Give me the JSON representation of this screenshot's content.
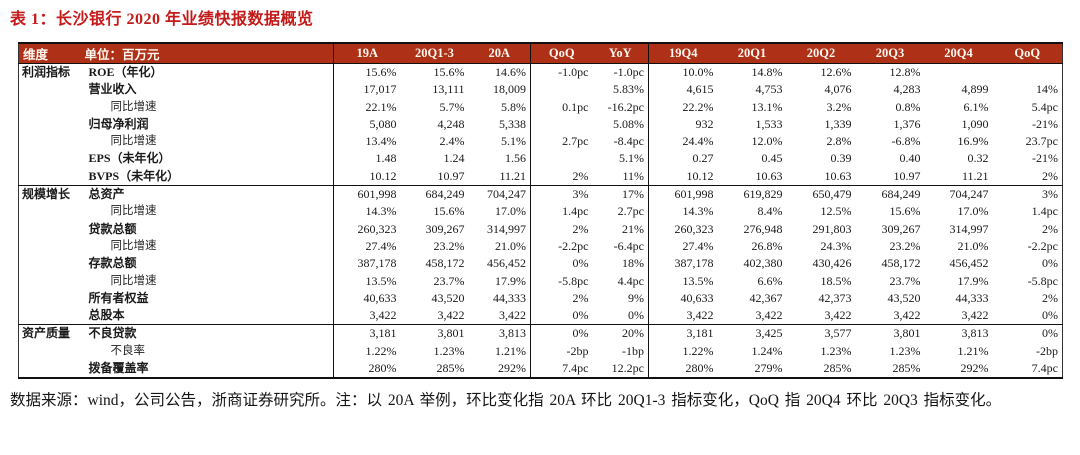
{
  "title": "表 1：长沙银行 2020 年业绩快报数据概览",
  "colors": {
    "header_bg": "#AE3117",
    "title_red": "#C41A1A",
    "border": "#111111"
  },
  "table": {
    "header": [
      "维度",
      "单位：百万元",
      "19A",
      "20Q1-3",
      "20A",
      "QoQ",
      "YoY",
      "19Q4",
      "20Q1",
      "20Q2",
      "20Q3",
      "20Q4",
      "QoQ"
    ],
    "sections": [
      {
        "name": "利润指标",
        "rows": [
          {
            "label": "ROE（年化）",
            "indent": false,
            "values": [
              "15.6%",
              "15.6%",
              "14.6%",
              "-1.0pc",
              "-1.0pc",
              "10.0%",
              "14.8%",
              "12.6%",
              "12.8%",
              "",
              ""
            ]
          },
          {
            "label": "营业收入",
            "indent": false,
            "values": [
              "17,017",
              "13,111",
              "18,009",
              "",
              "5.83%",
              "4,615",
              "4,753",
              "4,076",
              "4,283",
              "4,899",
              "14%"
            ]
          },
          {
            "label": "同比增速",
            "indent": true,
            "values": [
              "22.1%",
              "5.7%",
              "5.8%",
              "0.1pc",
              "-16.2pc",
              "22.2%",
              "13.1%",
              "3.2%",
              "0.8%",
              "6.1%",
              "5.4pc"
            ]
          },
          {
            "label": "归母净利润",
            "indent": false,
            "values": [
              "5,080",
              "4,248",
              "5,338",
              "",
              "5.08%",
              "932",
              "1,533",
              "1,339",
              "1,376",
              "1,090",
              "-21%"
            ]
          },
          {
            "label": "同比增速",
            "indent": true,
            "values": [
              "13.4%",
              "2.4%",
              "5.1%",
              "2.7pc",
              "-8.4pc",
              "24.4%",
              "12.0%",
              "2.8%",
              "-6.8%",
              "16.9%",
              "23.7pc"
            ]
          },
          {
            "label": "EPS（未年化）",
            "indent": false,
            "values": [
              "1.48",
              "1.24",
              "1.56",
              "",
              "5.1%",
              "0.27",
              "0.45",
              "0.39",
              "0.40",
              "0.32",
              "-21%"
            ]
          },
          {
            "label": "BVPS（未年化）",
            "indent": false,
            "values": [
              "10.12",
              "10.97",
              "11.21",
              "2%",
              "11%",
              "10.12",
              "10.63",
              "10.63",
              "10.97",
              "11.21",
              "2%"
            ]
          }
        ]
      },
      {
        "name": "规模增长",
        "rows": [
          {
            "label": "总资产",
            "indent": false,
            "values": [
              "601,998",
              "684,249",
              "704,247",
              "3%",
              "17%",
              "601,998",
              "619,829",
              "650,479",
              "684,249",
              "704,247",
              "3%"
            ]
          },
          {
            "label": "同比增速",
            "indent": true,
            "values": [
              "14.3%",
              "15.6%",
              "17.0%",
              "1.4pc",
              "2.7pc",
              "14.3%",
              "8.4%",
              "12.5%",
              "15.6%",
              "17.0%",
              "1.4pc"
            ]
          },
          {
            "label": "贷款总额",
            "indent": false,
            "values": [
              "260,323",
              "309,267",
              "314,997",
              "2%",
              "21%",
              "260,323",
              "276,948",
              "291,803",
              "309,267",
              "314,997",
              "2%"
            ]
          },
          {
            "label": "同比增速",
            "indent": true,
            "values": [
              "27.4%",
              "23.2%",
              "21.0%",
              "-2.2pc",
              "-6.4pc",
              "27.4%",
              "26.8%",
              "24.3%",
              "23.2%",
              "21.0%",
              "-2.2pc"
            ]
          },
          {
            "label": "存款总额",
            "indent": false,
            "values": [
              "387,178",
              "458,172",
              "456,452",
              "0%",
              "18%",
              "387,178",
              "402,380",
              "430,426",
              "458,172",
              "456,452",
              "0%"
            ]
          },
          {
            "label": "同比增速",
            "indent": true,
            "values": [
              "13.5%",
              "23.7%",
              "17.9%",
              "-5.8pc",
              "4.4pc",
              "13.5%",
              "6.6%",
              "18.5%",
              "23.7%",
              "17.9%",
              "-5.8pc"
            ]
          },
          {
            "label": "所有者权益",
            "indent": false,
            "values": [
              "40,633",
              "43,520",
              "44,333",
              "2%",
              "9%",
              "40,633",
              "42,367",
              "42,373",
              "43,520",
              "44,333",
              "2%"
            ]
          },
          {
            "label": "总股本",
            "indent": false,
            "values": [
              "3,422",
              "3,422",
              "3,422",
              "0%",
              "0%",
              "3,422",
              "3,422",
              "3,422",
              "3,422",
              "3,422",
              "0%"
            ]
          }
        ]
      },
      {
        "name": "资产质量",
        "rows": [
          {
            "label": "不良贷款",
            "indent": false,
            "values": [
              "3,181",
              "3,801",
              "3,813",
              "0%",
              "20%",
              "3,181",
              "3,425",
              "3,577",
              "3,801",
              "3,813",
              "0%"
            ]
          },
          {
            "label": "不良率",
            "indent": true,
            "values": [
              "1.22%",
              "1.23%",
              "1.21%",
              "-2bp",
              "-1bp",
              "1.22%",
              "1.24%",
              "1.23%",
              "1.23%",
              "1.21%",
              "-2bp"
            ]
          },
          {
            "label": "拨备覆盖率",
            "indent": false,
            "values": [
              "280%",
              "285%",
              "292%",
              "7.4pc",
              "12.2pc",
              "280%",
              "279%",
              "285%",
              "285%",
              "292%",
              "7.4pc"
            ]
          }
        ]
      }
    ]
  },
  "footnote": "数据来源：wind，公司公告，浙商证券研究所。注：以 20A 举例，环比变化指 20A 环比 20Q1-3 指标变化，QoQ 指 20Q4 环比 20Q3 指标变化。"
}
